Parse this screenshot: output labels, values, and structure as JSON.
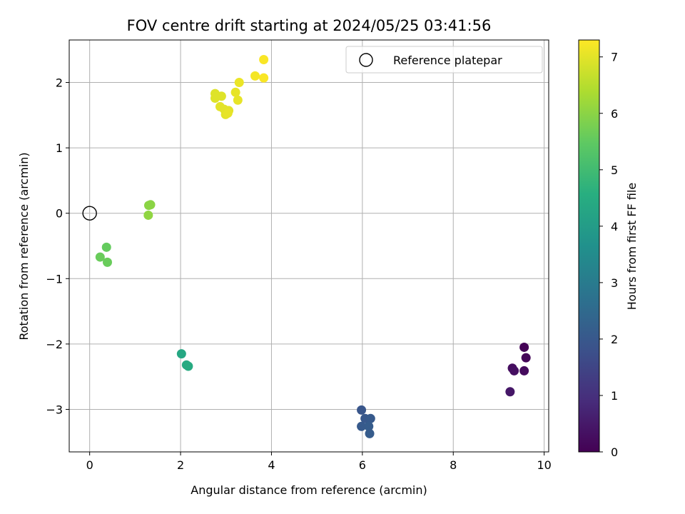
{
  "chart_data": {
    "type": "scatter",
    "title": "FOV centre drift starting at 2024/05/25 03:41:56",
    "xlabel": "Angular distance from reference (arcmin)",
    "ylabel": "Rotation from reference (arcmin)",
    "xlim": [
      -0.45,
      10.1
    ],
    "ylim": [
      -3.65,
      2.65
    ],
    "xticks": [
      0,
      2,
      4,
      6,
      8,
      10
    ],
    "yticks": [
      -3,
      -2,
      -1,
      0,
      1,
      2
    ],
    "grid": true,
    "legend": {
      "placement": "top-right",
      "entries": [
        "Reference platepar"
      ]
    },
    "reference_point": {
      "x": 0,
      "y": 0
    },
    "colorbar": {
      "label": "Hours from first FF file",
      "colormap": "viridis",
      "range": [
        0,
        7.3
      ],
      "ticks": [
        0,
        1,
        2,
        3,
        4,
        5,
        6,
        7
      ]
    },
    "points": [
      {
        "x": 9.56,
        "y": -2.05,
        "hours": 0.05
      },
      {
        "x": 9.6,
        "y": -2.21,
        "hours": 0.1
      },
      {
        "x": 9.3,
        "y": -2.37,
        "hours": 0.25
      },
      {
        "x": 9.34,
        "y": -2.41,
        "hours": 0.3
      },
      {
        "x": 9.56,
        "y": -2.41,
        "hours": 0.2
      },
      {
        "x": 9.25,
        "y": -2.73,
        "hours": 0.45
      },
      {
        "x": 5.98,
        "y": -3.01,
        "hours": 1.95
      },
      {
        "x": 6.06,
        "y": -3.14,
        "hours": 2.0
      },
      {
        "x": 6.18,
        "y": -3.14,
        "hours": 2.05
      },
      {
        "x": 5.98,
        "y": -3.26,
        "hours": 2.05
      },
      {
        "x": 6.14,
        "y": -3.26,
        "hours": 2.1
      },
      {
        "x": 6.16,
        "y": -3.37,
        "hours": 2.1
      },
      {
        "x": 2.02,
        "y": -2.15,
        "hours": 4.35
      },
      {
        "x": 2.13,
        "y": -2.32,
        "hours": 4.4
      },
      {
        "x": 2.17,
        "y": -2.34,
        "hours": 4.45
      },
      {
        "x": 0.37,
        "y": -0.52,
        "hours": 5.55
      },
      {
        "x": 0.23,
        "y": -0.67,
        "hours": 5.6
      },
      {
        "x": 0.39,
        "y": -0.75,
        "hours": 5.6
      },
      {
        "x": 1.3,
        "y": 0.12,
        "hours": 6.0
      },
      {
        "x": 1.34,
        "y": 0.13,
        "hours": 6.0
      },
      {
        "x": 1.29,
        "y": -0.03,
        "hours": 6.05
      },
      {
        "x": 2.76,
        "y": 1.83,
        "hours": 6.95
      },
      {
        "x": 2.76,
        "y": 1.76,
        "hours": 6.95
      },
      {
        "x": 2.9,
        "y": 1.79,
        "hours": 6.95
      },
      {
        "x": 2.87,
        "y": 1.63,
        "hours": 7.0
      },
      {
        "x": 2.96,
        "y": 1.59,
        "hours": 7.0
      },
      {
        "x": 3.06,
        "y": 1.57,
        "hours": 7.0
      },
      {
        "x": 2.99,
        "y": 1.51,
        "hours": 7.0
      },
      {
        "x": 3.04,
        "y": 1.53,
        "hours": 7.05
      },
      {
        "x": 3.21,
        "y": 1.85,
        "hours": 7.05
      },
      {
        "x": 3.26,
        "y": 1.73,
        "hours": 7.05
      },
      {
        "x": 3.29,
        "y": 2.0,
        "hours": 7.1
      },
      {
        "x": 3.64,
        "y": 2.1,
        "hours": 7.2
      },
      {
        "x": 3.83,
        "y": 2.07,
        "hours": 7.25
      },
      {
        "x": 3.83,
        "y": 2.35,
        "hours": 7.25
      }
    ]
  }
}
